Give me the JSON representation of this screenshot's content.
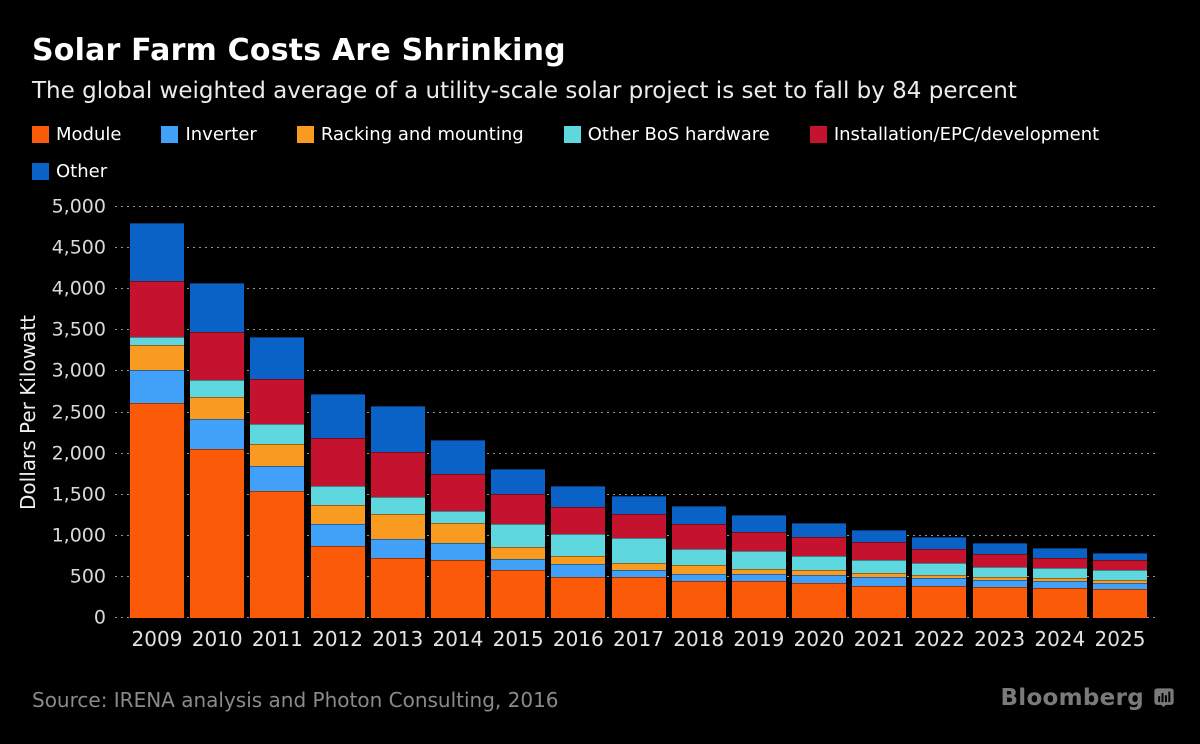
{
  "header": {
    "title": "Solar Farm Costs Are Shrinking",
    "subtitle": "The global weighted average of a utility-scale solar project is set to fall by 84 percent"
  },
  "chart_data": {
    "type": "bar",
    "stacked": true,
    "title": "Solar Farm Costs Are Shrinking",
    "xlabel": "",
    "ylabel": "Dollars Per Kilowatt",
    "ylim": [
      0,
      5000
    ],
    "ytick_step": 500,
    "grid": "horizontal-dotted",
    "legend_position": "top",
    "categories": [
      "2009",
      "2010",
      "2011",
      "2012",
      "2013",
      "2014",
      "2015",
      "2016",
      "2017",
      "2018",
      "2019",
      "2020",
      "2021",
      "2022",
      "2023",
      "2024",
      "2025"
    ],
    "series": [
      {
        "name": "Module",
        "color": "#fb5a09",
        "values": [
          2620,
          2060,
          1540,
          870,
          735,
          710,
          590,
          500,
          500,
          455,
          455,
          420,
          395,
          390,
          375,
          365,
          350
        ]
      },
      {
        "name": "Inverter",
        "color": "#41a0f7",
        "values": [
          400,
          355,
          315,
          275,
          225,
          200,
          130,
          160,
          90,
          85,
          80,
          100,
          100,
          95,
          90,
          85,
          80
        ]
      },
      {
        "name": "Racking and mounting",
        "color": "#f89b20",
        "values": [
          300,
          270,
          260,
          235,
          310,
          240,
          140,
          100,
          80,
          110,
          60,
          60,
          50,
          35,
          40,
          35,
          30
        ]
      },
      {
        "name": "Other BoS hardware",
        "color": "#5fd7df",
        "values": [
          100,
          215,
          240,
          220,
          205,
          150,
          280,
          265,
          300,
          185,
          225,
          170,
          155,
          145,
          120,
          120,
          120
        ]
      },
      {
        "name": "Installation/EPC/development",
        "color": "#c5122f",
        "values": [
          680,
          580,
          550,
          590,
          545,
          450,
          370,
          330,
          295,
          305,
          225,
          235,
          230,
          170,
          155,
          125,
          120
        ]
      },
      {
        "name": "Other",
        "color": "#0b62c6",
        "values": [
          700,
          590,
          515,
          540,
          560,
          420,
          300,
          250,
          215,
          225,
          210,
          170,
          140,
          145,
          135,
          120,
          90
        ]
      }
    ],
    "totals": [
      4800,
      4070,
      3420,
      2730,
      2580,
      2170,
      1810,
      1605,
      1480,
      1365,
      1255,
      1155,
      1070,
      980,
      915,
      850,
      790
    ]
  },
  "footer": {
    "source_label": "Source: IRENA analysis and Photon Consulting, 2016",
    "brand": "Bloomberg"
  },
  "colors": {
    "background": "#000000",
    "grid_dots": "#969696",
    "axis_text": "#d9d9d9",
    "title_text": "#ffffff"
  }
}
